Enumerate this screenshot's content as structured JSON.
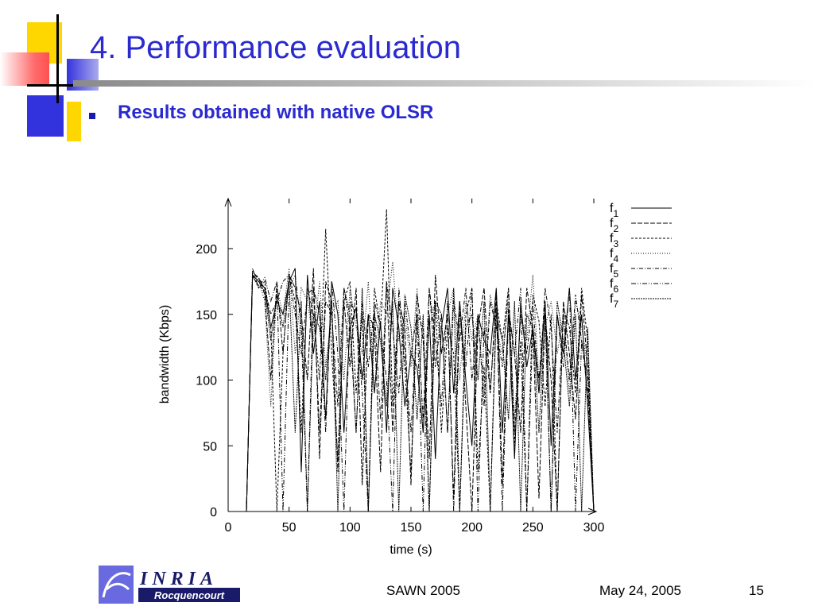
{
  "slide": {
    "title": "4. Performance evaluation",
    "bullet": "Results obtained with native OLSR"
  },
  "footer": {
    "conference": "SAWN 2005",
    "date": "May 24, 2005",
    "page": "15",
    "logo_text": "INRIA",
    "logo_subtext": "Rocquencourt"
  },
  "colors": {
    "title": "#2a2ad0",
    "deco_yellow": "#ffd700",
    "deco_blue": "#3333dd",
    "deco_red": "#ff6666",
    "line": "#000000"
  },
  "chart_data": {
    "type": "line",
    "xlabel": "time (s)",
    "ylabel": "bandwidth (Kbps)",
    "xlim": [
      0,
      300
    ],
    "ylim": [
      0,
      240
    ],
    "xticks": [
      0,
      50,
      100,
      150,
      200,
      250,
      300
    ],
    "yticks": [
      0,
      50,
      100,
      150,
      200
    ],
    "grid": false,
    "legend_position": "top-right",
    "series": [
      {
        "name": "f1",
        "label_base": "f",
        "label_sub": "1",
        "dash": "",
        "x": [
          15,
          20,
          25,
          30,
          35,
          40,
          45,
          50,
          55,
          60,
          65,
          70,
          75,
          80,
          85,
          90,
          95,
          100,
          105,
          110,
          115,
          120,
          125,
          130,
          135,
          140,
          145,
          150,
          155,
          160,
          165,
          170,
          175,
          180,
          185,
          190,
          195,
          200,
          205,
          210,
          215,
          220,
          225,
          230,
          235,
          240,
          245,
          250,
          255,
          260,
          265,
          270,
          275,
          280,
          285,
          290,
          295,
          300
        ],
        "y": [
          0,
          180,
          175,
          170,
          140,
          160,
          150,
          175,
          185,
          30,
          180,
          120,
          160,
          70,
          175,
          150,
          60,
          140,
          155,
          100,
          150,
          90,
          145,
          60,
          170,
          140,
          80,
          120,
          110,
          60,
          150,
          40,
          140,
          170,
          90,
          160,
          100,
          50,
          150,
          130,
          120,
          170,
          60,
          150,
          40,
          160,
          110,
          140,
          90,
          160,
          50,
          150,
          120,
          170,
          100,
          150,
          80,
          0
        ]
      },
      {
        "name": "f2",
        "label_base": "f",
        "label_sub": "2",
        "dash": "6,2",
        "x": [
          15,
          20,
          25,
          30,
          35,
          40,
          45,
          50,
          55,
          60,
          65,
          70,
          75,
          80,
          85,
          90,
          95,
          100,
          105,
          110,
          115,
          120,
          125,
          130,
          135,
          140,
          145,
          150,
          155,
          160,
          165,
          170,
          175,
          180,
          185,
          190,
          195,
          200,
          205,
          210,
          215,
          220,
          225,
          230,
          235,
          240,
          245,
          250,
          255,
          260,
          265,
          270,
          275,
          280,
          285,
          290,
          295,
          300
        ],
        "y": [
          0,
          182,
          178,
          165,
          100,
          175,
          120,
          180,
          170,
          150,
          100,
          185,
          40,
          175,
          160,
          30,
          160,
          110,
          170,
          20,
          150,
          140,
          30,
          175,
          60,
          160,
          140,
          20,
          165,
          130,
          40,
          180,
          120,
          150,
          10,
          160,
          80,
          0,
          140,
          170,
          90,
          165,
          20,
          155,
          120,
          60,
          170,
          140,
          10,
          150,
          100,
          0,
          160,
          120,
          70,
          165,
          110,
          0
        ]
      },
      {
        "name": "f3",
        "label_base": "f",
        "label_sub": "3",
        "dash": "3,2",
        "x": [
          15,
          20,
          25,
          30,
          35,
          40,
          45,
          50,
          55,
          60,
          65,
          70,
          75,
          80,
          85,
          90,
          95,
          100,
          105,
          110,
          115,
          120,
          125,
          130,
          135,
          140,
          145,
          150,
          155,
          160,
          165,
          170,
          175,
          180,
          185,
          190,
          195,
          200,
          205,
          210,
          215,
          220,
          225,
          230,
          235,
          240,
          245,
          250,
          255,
          260,
          265,
          270,
          275,
          280,
          285,
          290,
          295,
          300
        ],
        "y": [
          0,
          180,
          170,
          175,
          140,
          0,
          120,
          180,
          160,
          60,
          170,
          150,
          100,
          215,
          120,
          40,
          160,
          175,
          90,
          150,
          0,
          170,
          140,
          230,
          80,
          160,
          110,
          30,
          150,
          140,
          0,
          160,
          60,
          140,
          120,
          0,
          150,
          170,
          30,
          110,
          0,
          160,
          130,
          170,
          50,
          130,
          0,
          165,
          145,
          80,
          150,
          0,
          155,
          140,
          90,
          170,
          130,
          0
        ]
      },
      {
        "name": "f4",
        "label_base": "f",
        "label_sub": "4",
        "dash": "1,2",
        "x": [
          15,
          20,
          25,
          30,
          35,
          40,
          45,
          50,
          55,
          60,
          65,
          70,
          75,
          80,
          85,
          90,
          95,
          100,
          105,
          110,
          115,
          120,
          125,
          130,
          135,
          140,
          145,
          150,
          155,
          160,
          165,
          170,
          175,
          180,
          185,
          190,
          195,
          200,
          205,
          210,
          215,
          220,
          225,
          230,
          235,
          240,
          245,
          250,
          255,
          260,
          265,
          270,
          275,
          280,
          285,
          290,
          295,
          300
        ],
        "y": [
          0,
          183,
          176,
          160,
          80,
          170,
          150,
          185,
          120,
          170,
          160,
          130,
          175,
          110,
          150,
          160,
          100,
          170,
          140,
          120,
          175,
          90,
          160,
          150,
          190,
          130,
          150,
          110,
          170,
          60,
          140,
          160,
          120,
          150,
          170,
          100,
          160,
          130,
          150,
          90,
          165,
          140,
          120,
          160,
          70,
          150,
          130,
          180,
          100,
          140,
          160,
          120,
          150,
          90,
          160,
          140,
          110,
          0
        ]
      },
      {
        "name": "f5",
        "label_base": "f",
        "label_sub": "5",
        "dash": "5,2,1,2",
        "x": [
          15,
          20,
          25,
          30,
          35,
          40,
          45,
          50,
          55,
          60,
          65,
          70,
          75,
          80,
          85,
          90,
          95,
          100,
          105,
          110,
          115,
          120,
          125,
          130,
          135,
          140,
          145,
          150,
          155,
          160,
          165,
          170,
          175,
          180,
          185,
          190,
          195,
          200,
          205,
          210,
          215,
          220,
          225,
          230,
          235,
          240,
          245,
          250,
          255,
          260,
          265,
          270,
          275,
          280,
          285,
          290,
          295,
          300
        ],
        "y": [
          0,
          180,
          178,
          170,
          150,
          160,
          175,
          180,
          150,
          120,
          165,
          170,
          60,
          160,
          150,
          80,
          170,
          140,
          60,
          160,
          110,
          155,
          70,
          175,
          140,
          90,
          160,
          120,
          150,
          70,
          170,
          110,
          150,
          60,
          160,
          130,
          170,
          100,
          150,
          80,
          160,
          140,
          110,
          170,
          60,
          150,
          120,
          160,
          90,
          170,
          140,
          60,
          150,
          100,
          165,
          130,
          90,
          0
        ]
      },
      {
        "name": "f6",
        "label_base": "f",
        "label_sub": "6",
        "dash": "6,2,1,2,1,2",
        "x": [
          15,
          20,
          25,
          30,
          35,
          40,
          45,
          50,
          55,
          60,
          65,
          70,
          75,
          80,
          85,
          90,
          95,
          100,
          105,
          110,
          115,
          120,
          125,
          130,
          135,
          140,
          145,
          150,
          155,
          160,
          165,
          170,
          175,
          180,
          185,
          190,
          195,
          200,
          205,
          210,
          215,
          220,
          225,
          230,
          235,
          240,
          245,
          250,
          255,
          260,
          265,
          270,
          275,
          280,
          285,
          290,
          295,
          300
        ],
        "y": [
          0,
          185,
          170,
          178,
          160,
          175,
          0,
          170,
          180,
          140,
          0,
          170,
          150,
          60,
          175,
          120,
          0,
          160,
          150,
          90,
          0,
          160,
          140,
          100,
          0,
          170,
          120,
          60,
          150,
          0,
          170,
          130,
          80,
          160,
          0,
          150,
          110,
          170,
          0,
          140,
          90,
          160,
          0,
          150,
          120,
          170,
          0,
          140,
          100,
          160,
          0,
          150,
          110,
          170,
          0,
          130,
          100,
          0
        ]
      },
      {
        "name": "f7",
        "label_base": "f",
        "label_sub": "7",
        "dash": "2,1",
        "x": [
          15,
          20,
          25,
          30,
          35,
          40,
          45,
          50,
          55,
          60,
          65,
          70,
          75,
          80,
          85,
          90,
          95,
          100,
          105,
          110,
          115,
          120,
          125,
          130,
          135,
          140,
          145,
          150,
          155,
          160,
          165,
          170,
          175,
          180,
          185,
          190,
          195,
          200,
          205,
          210,
          215,
          220,
          225,
          230,
          235,
          240,
          245,
          250,
          255,
          260,
          265,
          270,
          275,
          280,
          285,
          290,
          295,
          300
        ],
        "y": [
          0,
          179,
          172,
          168,
          130,
          165,
          140,
          175,
          60,
          160,
          0,
          150,
          140,
          100,
          160,
          0,
          170,
          150,
          60,
          170,
          0,
          150,
          130,
          80,
          160,
          0,
          165,
          140,
          70,
          150,
          0,
          160,
          150,
          60,
          170,
          0,
          140,
          150,
          100,
          160,
          0,
          150,
          130,
          70,
          160,
          0,
          150,
          140,
          60,
          150,
          0,
          160,
          130,
          80,
          150,
          0,
          140,
          0
        ]
      }
    ]
  }
}
